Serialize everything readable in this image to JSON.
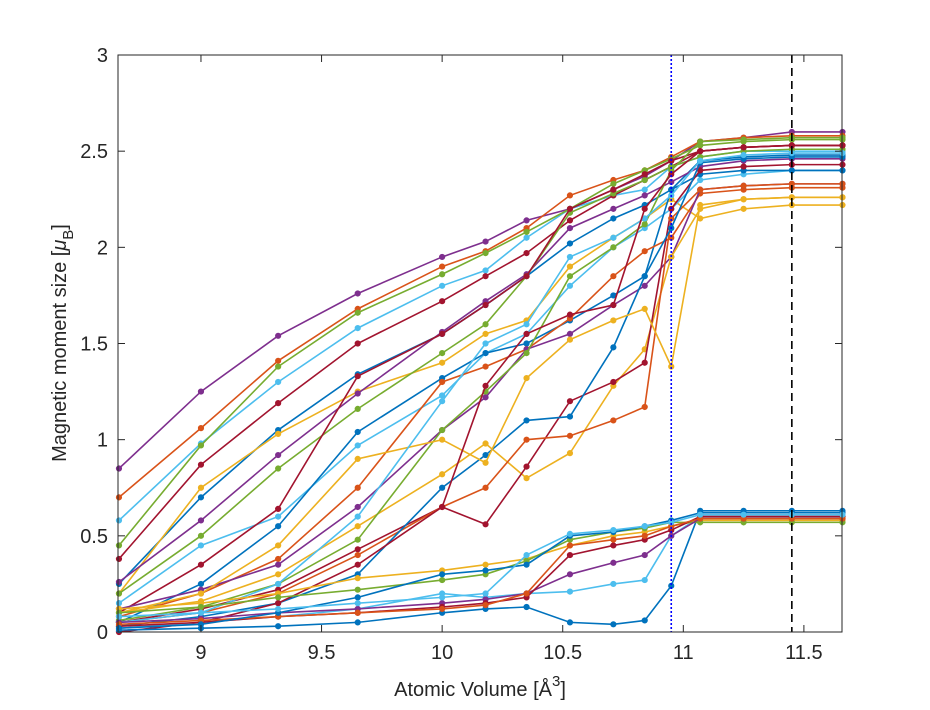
{
  "chart_data": {
    "type": "line",
    "xlabel": {
      "main": "Atomic Volume [Å",
      "superscript": "3",
      "close": "]"
    },
    "ylabel": {
      "main": "Magnetic moment size [",
      "symbol": "μ",
      "subscript": "B",
      "close": "]"
    },
    "x": [
      8.66,
      9.0,
      9.32,
      9.65,
      10.0,
      10.18,
      10.35,
      10.53,
      10.71,
      10.84,
      10.95,
      11.07,
      11.25,
      11.45,
      11.66
    ],
    "xlim": [
      8.656,
      11.658
    ],
    "ylim": [
      0,
      3
    ],
    "xticks": [
      9,
      9.5,
      10,
      10.5,
      11,
      11.5
    ],
    "yticks": [
      0,
      0.5,
      1,
      1.5,
      2,
      2.5,
      3
    ],
    "grid": false,
    "vlines": [
      {
        "value": 10.95,
        "color": "#0000ff",
        "style": "dotted"
      },
      {
        "value": 11.45,
        "color": "#000000",
        "style": "dashed"
      }
    ],
    "series": [
      {
        "color": "#7E2F8E",
        "values": [
          0.85,
          1.25,
          1.54,
          1.76,
          1.95,
          2.03,
          2.14,
          2.2,
          2.3,
          2.37,
          2.45,
          2.55,
          2.57,
          2.6,
          2.6
        ]
      },
      {
        "color": "#D95319",
        "values": [
          0.7,
          1.06,
          1.41,
          1.68,
          1.9,
          1.98,
          2.1,
          2.27,
          2.35,
          2.4,
          2.47,
          2.55,
          2.57,
          2.58,
          2.58
        ]
      },
      {
        "color": "#4DBEEE",
        "values": [
          0.58,
          0.98,
          1.3,
          1.58,
          1.8,
          1.88,
          2.05,
          2.2,
          2.27,
          2.3,
          2.42,
          2.47,
          2.5,
          2.5,
          2.5
        ]
      },
      {
        "color": "#77AC30",
        "values": [
          0.45,
          0.97,
          1.38,
          1.66,
          1.86,
          1.97,
          2.08,
          2.2,
          2.33,
          2.4,
          2.46,
          2.53,
          2.55,
          2.56,
          2.56
        ]
      },
      {
        "color": "#A2142F",
        "values": [
          0.38,
          0.87,
          1.19,
          1.5,
          1.72,
          1.85,
          1.97,
          2.14,
          2.27,
          2.35,
          2.42,
          2.5,
          2.52,
          2.53,
          2.53
        ]
      },
      {
        "color": "#0072BD",
        "values": [
          0.25,
          0.7,
          1.05,
          1.34,
          1.55,
          1.7,
          1.85,
          2.02,
          2.15,
          2.22,
          2.3,
          2.45,
          2.47,
          2.48,
          2.48
        ]
      },
      {
        "color": "#EDB120",
        "values": [
          0.2,
          0.75,
          1.03,
          1.25,
          1.4,
          1.55,
          1.62,
          1.9,
          2.05,
          2.15,
          2.25,
          2.15,
          2.2,
          2.22,
          2.22
        ]
      },
      {
        "color": "#7E2F8E",
        "values": [
          0.26,
          0.58,
          0.92,
          1.24,
          1.56,
          1.72,
          1.86,
          2.1,
          2.2,
          2.27,
          2.34,
          2.42,
          2.45,
          2.46,
          2.46
        ]
      },
      {
        "color": "#77AC30",
        "values": [
          0.2,
          0.5,
          0.85,
          1.16,
          1.45,
          1.6,
          1.85,
          2.18,
          2.28,
          2.35,
          2.42,
          2.47,
          2.5,
          2.51,
          2.51
        ]
      },
      {
        "color": "#4DBEEE",
        "values": [
          0.15,
          0.45,
          0.6,
          0.97,
          1.23,
          1.45,
          1.55,
          1.8,
          2.0,
          2.1,
          2.2,
          2.35,
          2.38,
          2.4,
          2.4
        ]
      },
      {
        "color": "#A2142F",
        "values": [
          0.1,
          0.35,
          0.64,
          1.33,
          1.55,
          1.7,
          1.85,
          2.2,
          2.3,
          2.38,
          2.45,
          2.5,
          2.52,
          2.53,
          2.53
        ]
      },
      {
        "color": "#0072BD",
        "values": [
          0.05,
          0.25,
          0.55,
          1.04,
          1.32,
          1.45,
          1.5,
          1.62,
          1.75,
          1.85,
          2.3,
          2.38,
          2.4,
          2.4,
          2.4
        ]
      },
      {
        "color": "#D95319",
        "values": [
          0.08,
          0.2,
          0.38,
          0.75,
          1.3,
          1.38,
          1.47,
          1.63,
          1.85,
          1.98,
          2.05,
          2.28,
          2.3,
          2.31,
          2.31
        ]
      },
      {
        "color": "#7E2F8E",
        "values": [
          0.12,
          0.22,
          0.35,
          0.65,
          1.05,
          1.22,
          1.47,
          1.55,
          1.7,
          1.8,
          1.95,
          2.3,
          2.32,
          2.33,
          2.33
        ]
      },
      {
        "color": "#EDB120",
        "values": [
          0.1,
          0.16,
          0.3,
          0.55,
          0.82,
          0.98,
          0.8,
          0.93,
          1.28,
          1.47,
          1.95,
          2.2,
          2.25,
          2.26,
          2.26
        ]
      },
      {
        "color": "#A2142F",
        "values": [
          0.05,
          0.12,
          0.22,
          0.43,
          0.65,
          0.56,
          0.86,
          1.2,
          1.3,
          1.4,
          2.2,
          2.4,
          2.42,
          2.43,
          2.43
        ]
      },
      {
        "color": "#D95319",
        "values": [
          0.05,
          0.1,
          0.2,
          0.4,
          0.65,
          0.75,
          1.0,
          1.02,
          1.1,
          1.17,
          2.15,
          2.3,
          2.32,
          2.33,
          2.33
        ]
      },
      {
        "color": "#0072BD",
        "values": [
          0.03,
          0.08,
          0.15,
          0.3,
          0.75,
          0.92,
          1.1,
          1.12,
          1.48,
          1.85,
          2.1,
          2.44,
          2.46,
          2.47,
          2.47
        ]
      },
      {
        "color": "#77AC30",
        "values": [
          0.06,
          0.13,
          0.25,
          0.48,
          1.05,
          1.25,
          1.45,
          1.85,
          2.0,
          2.12,
          2.4,
          2.55,
          2.56,
          2.57,
          2.57
        ]
      },
      {
        "color": "#EDB120",
        "values": [
          0.1,
          0.2,
          0.45,
          0.9,
          1.0,
          0.88,
          1.32,
          1.52,
          1.62,
          1.68,
          1.38,
          2.22,
          2.25,
          2.26,
          2.26
        ]
      },
      {
        "color": "#4DBEEE",
        "values": [
          0.05,
          0.1,
          0.25,
          0.6,
          1.2,
          1.5,
          1.6,
          1.95,
          2.05,
          2.15,
          2.27,
          2.45,
          2.48,
          2.49,
          2.49
        ]
      },
      {
        "color": "#A2142F",
        "values": [
          0.0,
          0.05,
          0.15,
          0.35,
          0.65,
          1.28,
          1.55,
          1.65,
          1.7,
          2.2,
          2.38,
          2.5,
          2.52,
          2.53,
          2.53
        ]
      },
      {
        "color": "#0072BD",
        "values": [
          0.01,
          0.02,
          0.03,
          0.05,
          0.1,
          0.12,
          0.13,
          0.05,
          0.04,
          0.06,
          0.24,
          0.63,
          0.63,
          0.63,
          0.63
        ]
      },
      {
        "color": "#4DBEEE",
        "values": [
          0.02,
          0.05,
          0.08,
          0.12,
          0.2,
          0.18,
          0.2,
          0.21,
          0.25,
          0.27,
          0.5,
          0.6,
          0.6,
          0.6,
          0.6
        ]
      },
      {
        "color": "#EDB120",
        "values": [
          0.12,
          0.15,
          0.2,
          0.28,
          0.32,
          0.35,
          0.38,
          0.45,
          0.5,
          0.52,
          0.55,
          0.58,
          0.58,
          0.58,
          0.58
        ]
      },
      {
        "color": "#77AC30",
        "values": [
          0.1,
          0.13,
          0.18,
          0.22,
          0.27,
          0.3,
          0.37,
          0.48,
          0.52,
          0.54,
          0.57,
          0.57,
          0.57,
          0.57,
          0.57
        ]
      },
      {
        "color": "#7E2F8E",
        "values": [
          0.05,
          0.07,
          0.1,
          0.12,
          0.15,
          0.17,
          0.2,
          0.3,
          0.36,
          0.4,
          0.5,
          0.59,
          0.59,
          0.59,
          0.59
        ]
      },
      {
        "color": "#A2142F",
        "values": [
          0.03,
          0.05,
          0.08,
          0.1,
          0.13,
          0.15,
          0.18,
          0.4,
          0.45,
          0.48,
          0.53,
          0.6,
          0.6,
          0.6,
          0.6
        ]
      },
      {
        "color": "#D95319",
        "values": [
          0.04,
          0.06,
          0.08,
          0.1,
          0.12,
          0.14,
          0.2,
          0.45,
          0.48,
          0.5,
          0.55,
          0.59,
          0.59,
          0.59,
          0.59
        ]
      },
      {
        "color": "#0072BD",
        "values": [
          0.02,
          0.04,
          0.1,
          0.18,
          0.3,
          0.32,
          0.35,
          0.5,
          0.52,
          0.55,
          0.58,
          0.62,
          0.62,
          0.62,
          0.62
        ]
      },
      {
        "color": "#4DBEEE",
        "values": [
          0.08,
          0.1,
          0.12,
          0.15,
          0.18,
          0.2,
          0.4,
          0.51,
          0.53,
          0.55,
          0.57,
          0.61,
          0.61,
          0.61,
          0.61
        ]
      }
    ]
  }
}
